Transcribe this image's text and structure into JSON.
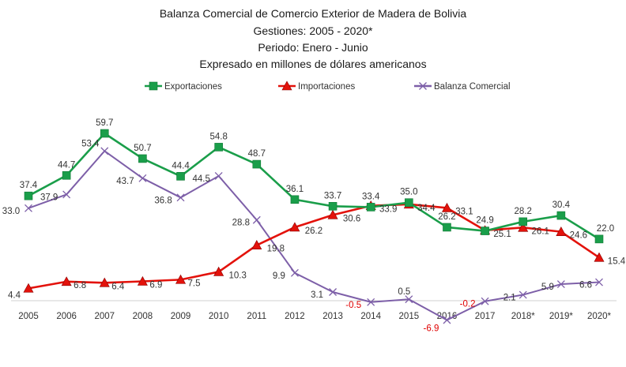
{
  "chart_data": {
    "type": "line",
    "title_lines": [
      "Balanza Comercial de Comercio Exterior de Madera de Bolivia",
      "Gestiones: 2005 - 2020*",
      "Periodo: Enero - Junio",
      "Expresado en millones de dólares americanos"
    ],
    "categories": [
      "2005",
      "2006",
      "2007",
      "2008",
      "2009",
      "2010",
      "2011",
      "2012",
      "2013",
      "2014",
      "2015",
      "2016",
      "2017",
      "2018*",
      "2019*",
      "2020*"
    ],
    "series": [
      {
        "name": "Exportaciones",
        "color": "#1a9e4a",
        "marker": "square",
        "values": [
          37.4,
          44.7,
          59.7,
          50.7,
          44.4,
          54.8,
          48.7,
          36.1,
          33.7,
          33.4,
          35.0,
          26.2,
          24.9,
          28.2,
          30.4,
          22.0
        ],
        "labels": [
          "37.4",
          "44.7",
          "59.7",
          "50.7",
          "44.4",
          "54.8",
          "48.7",
          "36.1",
          "33.7",
          "33.4",
          "35.0",
          "26.2",
          "24.9",
          "28.2",
          "30.4",
          "22.0"
        ]
      },
      {
        "name": "Importaciones",
        "color": "#e3120b",
        "marker": "triangle",
        "values": [
          4.4,
          6.8,
          6.4,
          6.9,
          7.5,
          10.3,
          19.8,
          26.2,
          30.6,
          33.9,
          34.4,
          33.1,
          25.1,
          26.1,
          24.6,
          15.4
        ],
        "labels": [
          "4.4",
          "6.8",
          "6.4",
          "6.9",
          "7.5",
          "10.3",
          "19.8",
          "26.2",
          "30.6",
          "33.9",
          "34.4",
          "33.1",
          "25.1",
          "26.1",
          "24.6",
          "15.4"
        ]
      },
      {
        "name": "Balanza Comercial",
        "color": "#7d5fa8",
        "marker": "x",
        "values": [
          33.0,
          37.9,
          53.4,
          43.7,
          36.8,
          44.5,
          28.8,
          9.9,
          3.1,
          -0.5,
          0.5,
          -6.9,
          -0.2,
          2.1,
          5.9,
          6.6
        ],
        "labels": [
          "33.0",
          "37.9",
          "53.4",
          "43.7",
          "36.8",
          "44.5",
          "28.8",
          "9.9",
          "3.1",
          "-0.5",
          "0.5",
          "-6.9",
          "-0.2",
          "2.1",
          "5.9",
          "6.6"
        ]
      }
    ],
    "negative_label_color": "#e00000",
    "legend_position": "top-center",
    "grid": false,
    "ylim": [
      -8,
      65
    ]
  }
}
